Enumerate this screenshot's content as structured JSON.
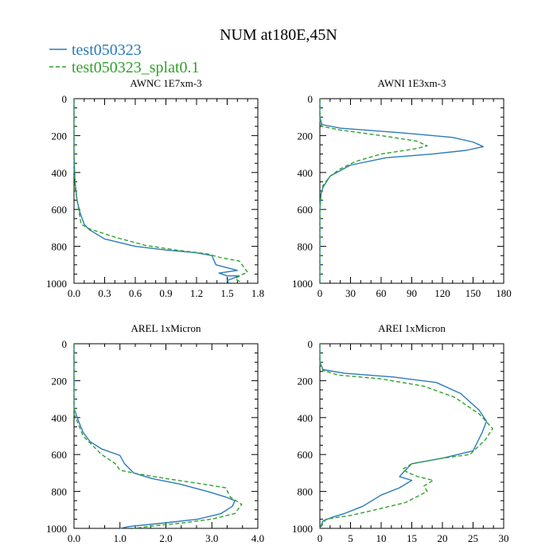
{
  "figure": {
    "title": "NUM at180E,45N",
    "legend": [
      {
        "label": "test050323",
        "color": "#2b7bba",
        "dash": "solid"
      },
      {
        "label": "test050323_splat0.1",
        "color": "#33a02c",
        "dash": "dashed"
      }
    ]
  },
  "chart_data": [
    {
      "type": "line",
      "title": "AWNC  1E7xm-3",
      "xlim": [
        0,
        1.8
      ],
      "ylim": [
        0,
        1000
      ],
      "xticks": [
        "0.0",
        "0.3",
        "0.6",
        "0.9",
        "1.2",
        "1.5",
        "1.8"
      ],
      "yticks": [
        "0",
        "200",
        "400",
        "600",
        "800",
        "1000"
      ],
      "series": [
        {
          "name": "test050323",
          "points": [
            [
              0,
              0
            ],
            [
              0,
              300
            ],
            [
              0.01,
              450
            ],
            [
              0.03,
              550
            ],
            [
              0.06,
              620
            ],
            [
              0.1,
              680
            ],
            [
              0.15,
              710
            ],
            [
              0.3,
              760
            ],
            [
              0.6,
              800
            ],
            [
              0.9,
              820
            ],
            [
              1.2,
              835
            ],
            [
              1.35,
              850
            ],
            [
              1.39,
              900
            ],
            [
              1.6,
              930
            ],
            [
              1.42,
              945
            ],
            [
              1.5,
              960
            ],
            [
              1.62,
              960
            ],
            [
              1.5,
              985
            ],
            [
              1.52,
              1000
            ]
          ]
        },
        {
          "name": "test050323_splat0.1",
          "points": [
            [
              0,
              0
            ],
            [
              0,
              350
            ],
            [
              0.01,
              480
            ],
            [
              0.04,
              580
            ],
            [
              0.06,
              650
            ],
            [
              0.07,
              680
            ],
            [
              0.15,
              705
            ],
            [
              0.4,
              750
            ],
            [
              0.7,
              795
            ],
            [
              1.0,
              820
            ],
            [
              1.3,
              840
            ],
            [
              1.43,
              860
            ],
            [
              1.62,
              880
            ],
            [
              1.7,
              940
            ],
            [
              1.62,
              960
            ],
            [
              1.58,
              975
            ],
            [
              1.62,
              990
            ],
            [
              1.6,
              1000
            ]
          ]
        }
      ]
    },
    {
      "type": "line",
      "title": "AWNI  1E3xm-3",
      "xlim": [
        0,
        180
      ],
      "ylim": [
        0,
        1000
      ],
      "xticks": [
        "0",
        "30",
        "60",
        "90",
        "120",
        "150",
        "180"
      ],
      "yticks": [
        "0",
        "200",
        "400",
        "600",
        "800",
        "1000"
      ],
      "series": [
        {
          "name": "test050323",
          "points": [
            [
              0,
              0
            ],
            [
              0,
              100
            ],
            [
              2,
              140
            ],
            [
              20,
              160
            ],
            [
              80,
              185
            ],
            [
              130,
              210
            ],
            [
              150,
              235
            ],
            [
              160,
              260
            ],
            [
              143,
              280
            ],
            [
              110,
              300
            ],
            [
              65,
              320
            ],
            [
              30,
              360
            ],
            [
              10,
              420
            ],
            [
              3,
              480
            ],
            [
              1,
              520
            ],
            [
              0,
              600
            ],
            [
              0,
              1000
            ]
          ]
        },
        {
          "name": "test050323_splat0.1",
          "points": [
            [
              0,
              0
            ],
            [
              0,
              120
            ],
            [
              2,
              150
            ],
            [
              20,
              170
            ],
            [
              60,
              200
            ],
            [
              95,
              230
            ],
            [
              105,
              255
            ],
            [
              95,
              270
            ],
            [
              60,
              300
            ],
            [
              35,
              340
            ],
            [
              20,
              380
            ],
            [
              10,
              420
            ],
            [
              3,
              470
            ],
            [
              1,
              520
            ],
            [
              0,
              600
            ],
            [
              0,
              1000
            ]
          ]
        }
      ]
    },
    {
      "type": "line",
      "title": "AREL  1xMicron",
      "xlim": [
        0,
        4.0
      ],
      "ylim": [
        0,
        1000
      ],
      "xticks": [
        "0.0",
        "1.0",
        "2.0",
        "3.0",
        "4.0"
      ],
      "yticks": [
        "0",
        "200",
        "400",
        "600",
        "800",
        "1000"
      ],
      "series": [
        {
          "name": "test050323",
          "points": [
            [
              0,
              0
            ],
            [
              0,
              350
            ],
            [
              0.1,
              420
            ],
            [
              0.2,
              480
            ],
            [
              0.35,
              530
            ],
            [
              0.6,
              570
            ],
            [
              1.0,
              605
            ],
            [
              1.1,
              650
            ],
            [
              1.3,
              700
            ],
            [
              1.7,
              730
            ],
            [
              2.3,
              760
            ],
            [
              2.9,
              800
            ],
            [
              3.3,
              830
            ],
            [
              3.5,
              850
            ],
            [
              3.45,
              880
            ],
            [
              3.2,
              920
            ],
            [
              2.7,
              950
            ],
            [
              2.0,
              970
            ],
            [
              1.2,
              990
            ],
            [
              1.0,
              1000
            ]
          ]
        },
        {
          "name": "test050323_splat0.1",
          "points": [
            [
              0,
              0
            ],
            [
              0,
              380
            ],
            [
              0.1,
              440
            ],
            [
              0.2,
              500
            ],
            [
              0.4,
              550
            ],
            [
              0.6,
              600
            ],
            [
              0.9,
              650
            ],
            [
              1.0,
              685
            ],
            [
              1.4,
              705
            ],
            [
              2.0,
              730
            ],
            [
              2.8,
              760
            ],
            [
              3.3,
              780
            ],
            [
              3.4,
              830
            ],
            [
              3.65,
              870
            ],
            [
              3.5,
              920
            ],
            [
              3.0,
              950
            ],
            [
              2.4,
              970
            ],
            [
              1.8,
              985
            ],
            [
              1.3,
              1000
            ]
          ]
        }
      ]
    },
    {
      "type": "line",
      "title": "AREI  1xMicron",
      "xlim": [
        0,
        30
      ],
      "ylim": [
        0,
        1000
      ],
      "xticks": [
        "0",
        "5",
        "10",
        "15",
        "20",
        "25",
        "30"
      ],
      "yticks": [
        "0",
        "200",
        "400",
        "600",
        "800",
        "1000"
      ],
      "series": [
        {
          "name": "test050323",
          "points": [
            [
              0,
              0
            ],
            [
              0,
              100
            ],
            [
              0.5,
              140
            ],
            [
              4,
              160
            ],
            [
              12,
              180
            ],
            [
              19,
              210
            ],
            [
              23,
              270
            ],
            [
              26,
              360
            ],
            [
              27.2,
              420
            ],
            [
              26.5,
              480
            ],
            [
              25,
              580
            ],
            [
              20,
              620
            ],
            [
              15,
              650
            ],
            [
              13.8,
              690
            ],
            [
              13,
              720
            ],
            [
              15,
              740
            ],
            [
              13,
              780
            ],
            [
              10,
              820
            ],
            [
              7,
              880
            ],
            [
              4,
              920
            ],
            [
              2,
              940
            ],
            [
              0.5,
              960
            ],
            [
              0,
              1000
            ]
          ]
        },
        {
          "name": "test050323_splat0.1",
          "points": [
            [
              0,
              0
            ],
            [
              0,
              110
            ],
            [
              0.5,
              145
            ],
            [
              3,
              170
            ],
            [
              10,
              190
            ],
            [
              17,
              230
            ],
            [
              22,
              290
            ],
            [
              26,
              380
            ],
            [
              28.2,
              460
            ],
            [
              27,
              520
            ],
            [
              24.5,
              600
            ],
            [
              20,
              620
            ],
            [
              15,
              650
            ],
            [
              13.5,
              680
            ],
            [
              14.5,
              700
            ],
            [
              16,
              720
            ],
            [
              18.5,
              740
            ],
            [
              17,
              770
            ],
            [
              17.5,
              800
            ],
            [
              14,
              860
            ],
            [
              9,
              900
            ],
            [
              5,
              930
            ],
            [
              1,
              950
            ],
            [
              0,
              1000
            ]
          ]
        }
      ]
    }
  ]
}
